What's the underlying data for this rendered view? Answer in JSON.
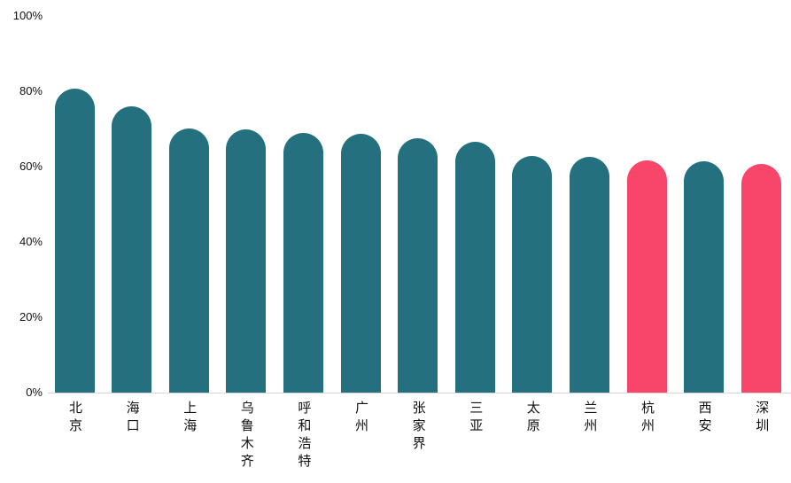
{
  "chart_data": {
    "type": "bar",
    "title": "",
    "xlabel": "",
    "ylabel": "",
    "categories": [
      "北京",
      "海口",
      "上海",
      "乌鲁木齐",
      "呼和浩特",
      "广州",
      "张家界",
      "三亚",
      "太原",
      "兰州",
      "杭州",
      "西安",
      "深圳"
    ],
    "values": [
      80.5,
      76.0,
      70.1,
      69.9,
      68.9,
      68.7,
      67.5,
      66.4,
      62.8,
      62.6,
      61.6,
      61.4,
      60.7
    ],
    "bar_colors": [
      "teal",
      "teal",
      "teal",
      "teal",
      "teal",
      "teal",
      "teal",
      "teal",
      "teal",
      "teal",
      "pink",
      "teal",
      "pink"
    ],
    "palette": {
      "teal": "#25707E",
      "pink": "#F8456A"
    },
    "highlighted_categories": [
      "杭州",
      "深圳"
    ],
    "y_ticks": [
      "0%",
      "20%",
      "40%",
      "60%",
      "80%",
      "100%"
    ],
    "ylim": [
      0,
      100
    ],
    "grid": false,
    "legend": false,
    "axis_line_color": "#d6d6d6",
    "text_color": "#111111",
    "background_color": "#ffffff"
  }
}
